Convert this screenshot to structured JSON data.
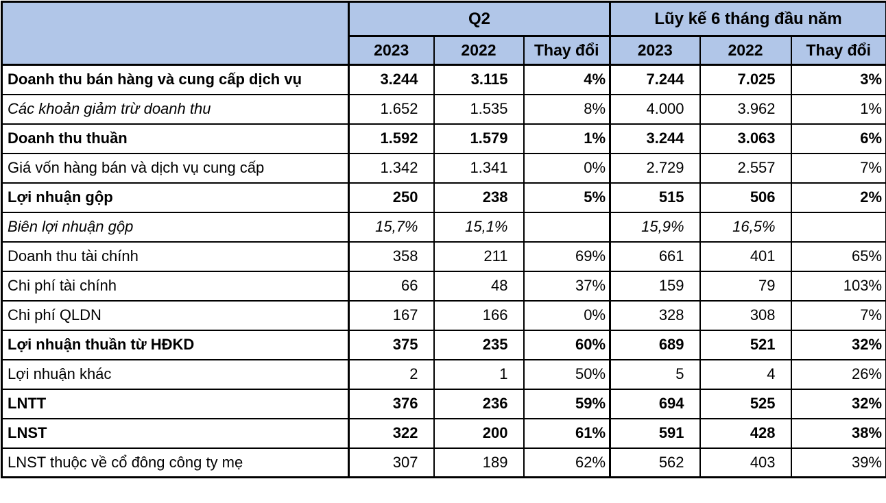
{
  "chart_data": {
    "type": "table",
    "title": "",
    "column_groups": [
      {
        "label": "Q2",
        "span": 3
      },
      {
        "label": "Lũy kế 6 tháng đầu năm",
        "span": 3
      }
    ],
    "columns": [
      "2023",
      "2022",
      "Thay đổi",
      "2023",
      "2022",
      "Thay đổi"
    ],
    "rows": [
      {
        "label": "Doanh thu bán hàng và cung cấp dịch vụ",
        "style": "bold",
        "values": [
          "3.244",
          "3.115",
          "4%",
          "7.244",
          "7.025",
          "3%"
        ]
      },
      {
        "label": "Các khoản giảm trừ doanh thu",
        "style": "italic-label",
        "values": [
          "1.652",
          "1.535",
          "8%",
          "4.000",
          "3.962",
          "1%"
        ]
      },
      {
        "label": "Doanh thu thuần",
        "style": "bold",
        "values": [
          "1.592",
          "1.579",
          "1%",
          "3.244",
          "3.063",
          "6%"
        ]
      },
      {
        "label": "Giá vốn hàng bán và dịch vụ cung cấp",
        "style": "normal",
        "values": [
          "1.342",
          "1.341",
          "0%",
          "2.729",
          "2.557",
          "7%"
        ]
      },
      {
        "label": "Lợi nhuận gộp",
        "style": "bold",
        "values": [
          "250",
          "238",
          "5%",
          "515",
          "506",
          "2%"
        ]
      },
      {
        "label": "Biên lợi nhuận gộp",
        "style": "italic",
        "values": [
          "15,7%",
          "15,1%",
          "",
          "15,9%",
          "16,5%",
          ""
        ]
      },
      {
        "label": "Doanh thu tài chính",
        "style": "normal",
        "values": [
          "358",
          "211",
          "69%",
          "661",
          "401",
          "65%"
        ]
      },
      {
        "label": "Chi phí tài chính",
        "style": "normal",
        "values": [
          "66",
          "48",
          "37%",
          "159",
          "79",
          "103%"
        ]
      },
      {
        "label": "Chi phí QLDN",
        "style": "normal",
        "values": [
          "167",
          "166",
          "0%",
          "328",
          "308",
          "7%"
        ]
      },
      {
        "label": "Lợi nhuận thuần từ HĐKD",
        "style": "bold",
        "values": [
          "375",
          "235",
          "60%",
          "689",
          "521",
          "32%"
        ]
      },
      {
        "label": "Lợi nhuận khác",
        "style": "normal",
        "values": [
          "2",
          "1",
          "50%",
          "5",
          "4",
          "26%"
        ]
      },
      {
        "label": "LNTT",
        "style": "bold",
        "values": [
          "376",
          "236",
          "59%",
          "694",
          "525",
          "32%"
        ]
      },
      {
        "label": "LNST",
        "style": "bold",
        "values": [
          "322",
          "200",
          "61%",
          "591",
          "428",
          "38%"
        ]
      },
      {
        "label": "LNST thuộc về cổ đông công ty mẹ",
        "style": "normal",
        "values": [
          "307",
          "189",
          "62%",
          "562",
          "403",
          "39%"
        ]
      }
    ]
  },
  "colors": {
    "header_bg": "#b1c6e8",
    "border": "#000000",
    "text": "#000000",
    "row_bg": "#ffffff"
  }
}
